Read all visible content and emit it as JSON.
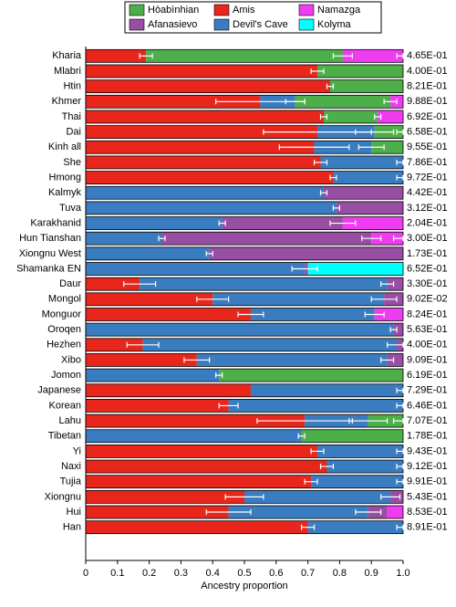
{
  "chart_data": {
    "type": "stacked-bar-horizontal",
    "x_label": "Ancestry proportion",
    "categories": [
      "Kharia",
      "Mlabri",
      "Htin",
      "Khmer",
      "Thai",
      "Dai",
      "Kinh all",
      "She",
      "Hmong",
      "Kalmyk",
      "Tuva",
      "Karakhanid",
      "Hun Tianshan",
      "Xiongnu West",
      "Shamanka EN",
      "Daur",
      "Mongol",
      "Monguor",
      "Oroqen",
      "Hezhen",
      "Xibo",
      "Jomon",
      "Japanese",
      "Korean",
      "Lahu",
      "Tibetan",
      "Yi",
      "Naxi",
      "Tujia",
      "Xiongnu",
      "Hui",
      "Han"
    ],
    "p_values": [
      "4.65E-01",
      "4.00E-01",
      "8.21E-01",
      "9.88E-01",
      "6.92E-01",
      "6.58E-01",
      "9.55E-01",
      "7.86E-01",
      "9.72E-01",
      "4.42E-01",
      "3.12E-01",
      "2.04E-01",
      "3.00E-01",
      "1.73E-01",
      "6.52E-01",
      "3.30E-01",
      "9.02E-02",
      "8.24E-01",
      "5.63E-01",
      "4.00E-01",
      "9.09E-01",
      "6.19E-01",
      "7.29E-01",
      "6.46E-01",
      "7.07E-01",
      "1.78E-01",
      "9.43E-01",
      "9.12E-01",
      "9.91E-01",
      "5.43E-01",
      "8.53E-01",
      "8.91E-01"
    ],
    "series": [
      {
        "name": "Amis",
        "color": "#e8261c",
        "values": [
          0.19,
          0.73,
          0.77,
          0.55,
          0.75,
          0.73,
          0.72,
          0.74,
          0.78,
          0,
          0,
          0,
          0,
          0,
          0,
          0.17,
          0.4,
          0.52,
          0,
          0.18,
          0.35,
          0,
          0.52,
          0.45,
          0.69,
          0,
          0.73,
          0.76,
          0.71,
          0.5,
          0.45,
          0.7
        ],
        "errors": [
          0.02,
          0.02,
          0.01,
          0.14,
          0.01,
          0.17,
          0.11,
          0.02,
          0.01,
          null,
          null,
          null,
          null,
          null,
          null,
          0.05,
          0.05,
          0.04,
          null,
          0.05,
          0.04,
          null,
          null,
          0.03,
          0.15,
          null,
          0.02,
          0.02,
          0.02,
          0.06,
          0.07,
          0.02
        ]
      },
      {
        "name": "Devil's Cave",
        "color": "#3a7cc0",
        "values": [
          0,
          0,
          0,
          0.11,
          0,
          0.18,
          0.18,
          0.26,
          0.22,
          0.75,
          0.79,
          0.43,
          0.24,
          0.39,
          0.69,
          0.78,
          0.54,
          0.39,
          0.97,
          0.8,
          0.6,
          0.42,
          0.48,
          0.55,
          0.2,
          0.68,
          0.27,
          0.24,
          0.29,
          0.46,
          0.44,
          0.3
        ],
        "errors": [
          null,
          null,
          null,
          0.03,
          null,
          0.06,
          0.04,
          0.02,
          0.02,
          0.01,
          0.01,
          0.01,
          0.01,
          0.01,
          0.04,
          0.02,
          0.04,
          0.03,
          0.01,
          0.03,
          0.02,
          0.01,
          0.02,
          0.02,
          0.06,
          0.01,
          0.02,
          0.02,
          0.02,
          0.03,
          0.04,
          0.02
        ]
      },
      {
        "name": "Afanasievo",
        "color": "#984ea3",
        "values": [
          0,
          0,
          0,
          0,
          0,
          0,
          0,
          0,
          0,
          0.25,
          0.21,
          0.38,
          0.66,
          0.61,
          0.01,
          0.05,
          0.06,
          0,
          0.03,
          0.02,
          0.05,
          0,
          0,
          0,
          0,
          0,
          0,
          0,
          0,
          0.04,
          0.06,
          0
        ],
        "errors": [
          null,
          null,
          null,
          null,
          null,
          null,
          null,
          null,
          null,
          null,
          null,
          0.04,
          0.03,
          null,
          null,
          null,
          null,
          null,
          null,
          null,
          null,
          null,
          null,
          null,
          null,
          null,
          null,
          null,
          null,
          null,
          null,
          null
        ]
      },
      {
        "name": "Hòabìnhian",
        "color": "#4daf4a",
        "values": [
          0.62,
          0.27,
          0.23,
          0.3,
          0.17,
          0.09,
          0.1,
          0,
          0,
          0,
          0,
          0,
          0,
          0,
          0,
          0,
          0,
          0,
          0,
          0,
          0,
          0.58,
          0,
          0,
          0.11,
          0.32,
          0,
          0,
          0,
          0,
          0,
          0
        ],
        "errors": [
          0.03,
          null,
          null,
          0.02,
          0.01,
          0.02,
          null,
          null,
          null,
          null,
          null,
          null,
          null,
          null,
          null,
          null,
          null,
          null,
          null,
          null,
          null,
          null,
          null,
          null,
          0.03,
          null,
          null,
          null,
          null,
          null,
          null,
          null
        ]
      },
      {
        "name": "Namazga",
        "color": "#f03cf0",
        "values": [
          0.19,
          0,
          0,
          0.04,
          0.08,
          0,
          0,
          0,
          0,
          0,
          0,
          0.19,
          0.1,
          0,
          0,
          0,
          0,
          0.09,
          0,
          0,
          0,
          0,
          0,
          0,
          0,
          0,
          0,
          0,
          0,
          0,
          0.05,
          0
        ],
        "errors": [
          0.02,
          null,
          null,
          null,
          null,
          null,
          null,
          null,
          null,
          null,
          null,
          null,
          0.03,
          null,
          null,
          null,
          null,
          null,
          null,
          null,
          null,
          null,
          null,
          null,
          null,
          null,
          null,
          null,
          null,
          null,
          null,
          null
        ]
      },
      {
        "name": "Kolyma",
        "color": "#00ffff",
        "values": [
          0,
          0,
          0,
          0,
          0,
          0,
          0,
          0,
          0,
          0,
          0,
          0,
          0,
          0,
          0.3,
          0,
          0,
          0,
          0,
          0,
          0,
          0,
          0,
          0,
          0,
          0,
          0,
          0,
          0,
          0,
          0,
          0
        ]
      }
    ],
    "xlim": [
      0,
      1
    ],
    "xticks": [
      0,
      0.1,
      0.2,
      0.3,
      0.4,
      0.5,
      0.6,
      0.7,
      0.8,
      0.9,
      {
        "value": 1,
        "label": "1.0"
      }
    ]
  }
}
